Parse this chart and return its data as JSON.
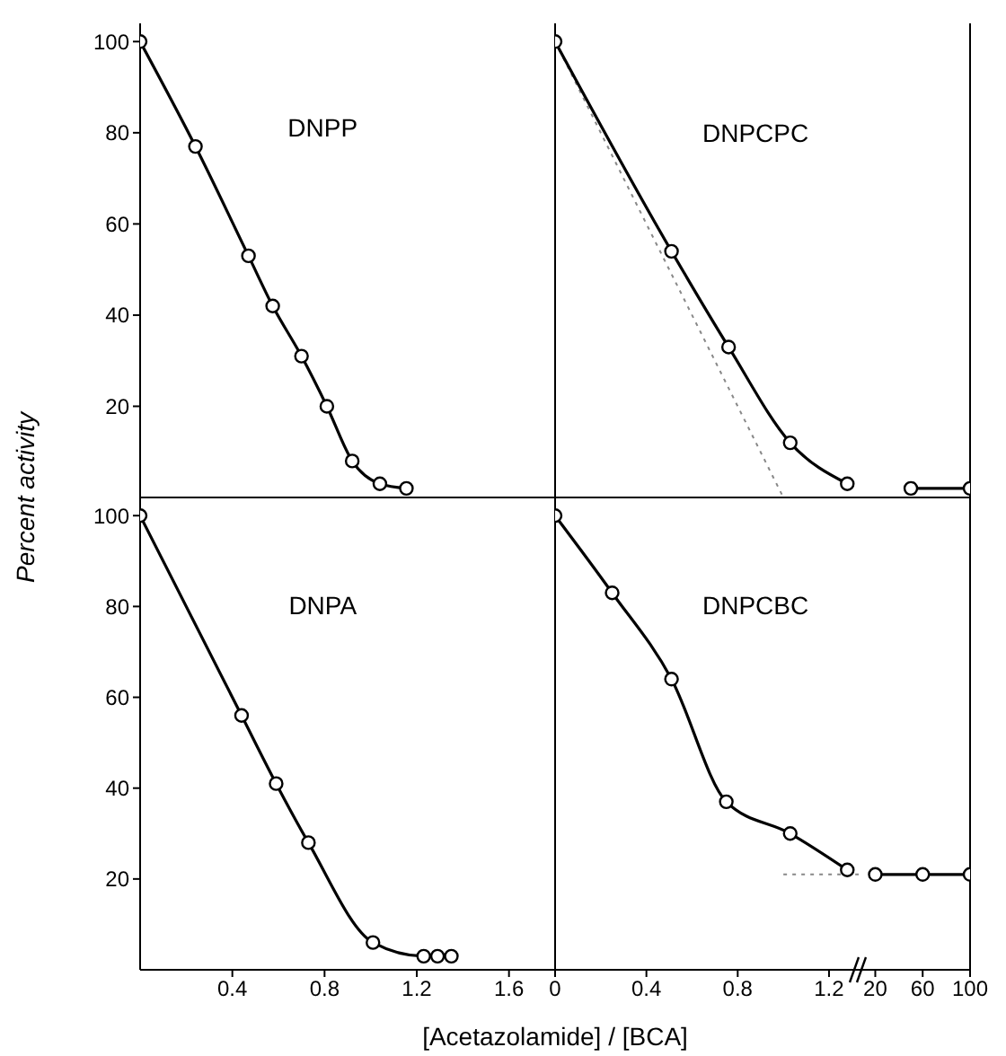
{
  "chart_data": [
    {
      "type": "line",
      "title": "DNPP",
      "ylabel": "Percent activity",
      "xlim": [
        0,
        1.8
      ],
      "xticks": [
        0.4,
        0.8,
        1.2,
        1.6
      ],
      "ylim": [
        0,
        104
      ],
      "yticks": [
        20,
        40,
        60,
        80,
        100
      ],
      "tick_labels": "y",
      "series": [
        {
          "color": "#000000",
          "marker": "circle",
          "line_style": "solid",
          "x": [
            0,
            0.24,
            0.47,
            0.575,
            0.7,
            0.81,
            0.92,
            1.04,
            1.155
          ],
          "values": [
            100,
            77,
            53,
            42,
            31,
            20,
            8,
            3,
            2
          ]
        }
      ]
    },
    {
      "type": "line",
      "title": "DNPCPC",
      "xlim": [
        0,
        1.33
      ],
      "xticks": [
        0,
        0.4,
        0.8,
        1.2
      ],
      "ylim": [
        0,
        104
      ],
      "tick_labels": false,
      "series": [
        {
          "color": "#888888",
          "marker": "none",
          "line_style": "dotted",
          "x": [
            0,
            1.0
          ],
          "values": [
            100,
            0
          ]
        },
        {
          "color": "#000000",
          "marker": "circle",
          "line_style": "solid",
          "x": [
            0,
            0.51,
            0.76,
            1.03,
            1.28
          ],
          "values": [
            100,
            54,
            33,
            12,
            3
          ]
        }
      ]
    },
    {
      "type": "line",
      "xlim": [
        6,
        100
      ],
      "xticks": [
        20,
        60,
        100
      ],
      "ylim": [
        0,
        104
      ],
      "tick_labels": false,
      "series": [
        {
          "color": "#000000",
          "marker": "circle",
          "line_style": "solid",
          "x": [
            50,
            100
          ],
          "values": [
            2,
            2
          ]
        }
      ]
    },
    {
      "type": "line",
      "title": "DNPA",
      "xlabel": "[Acetazolamide] / [BCA]",
      "xlim": [
        0,
        1.8
      ],
      "xticks": [
        0.4,
        0.8,
        1.2,
        1.6
      ],
      "ylim": [
        0,
        104
      ],
      "yticks": [
        20,
        40,
        60,
        80,
        100
      ],
      "series": [
        {
          "color": "#000000",
          "marker": "circle",
          "line_style": "solid",
          "x": [
            0,
            0.44,
            0.59,
            0.73,
            1.01,
            1.23,
            1.29,
            1.35
          ],
          "values": [
            100,
            56,
            41,
            28,
            6,
            3,
            3,
            3
          ]
        }
      ]
    },
    {
      "type": "line",
      "title": "DNPCBC",
      "xlim": [
        0,
        1.33
      ],
      "xticks": [
        0,
        0.4,
        0.8,
        1.2
      ],
      "ylim": [
        0,
        104
      ],
      "tick_labels": "x",
      "series": [
        {
          "color": "#888888",
          "marker": "none",
          "line_style": "dotted",
          "x": [
            1.0,
            1.33
          ],
          "values": [
            21,
            21
          ]
        },
        {
          "color": "#000000",
          "marker": "circle",
          "line_style": "solid",
          "x": [
            0,
            0.25,
            0.51,
            0.75,
            1.03,
            1.28
          ],
          "values": [
            100,
            83,
            64,
            37,
            30,
            22
          ]
        }
      ]
    },
    {
      "type": "line",
      "xlim": [
        6,
        100
      ],
      "xticks": [
        20,
        60,
        100
      ],
      "ylim": [
        0,
        104
      ],
      "tick_labels": "x",
      "series": [
        {
          "color": "#000000",
          "marker": "circle",
          "line_style": "solid",
          "x": [
            20,
            60,
            100
          ],
          "values": [
            21,
            21,
            21
          ]
        }
      ]
    }
  ]
}
